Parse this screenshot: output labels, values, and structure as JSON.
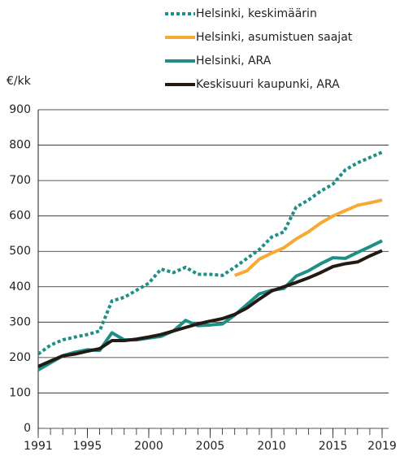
{
  "chart_data": {
    "type": "line",
    "y_label": "€/kk",
    "x": [
      1991,
      1992,
      1993,
      1994,
      1995,
      1996,
      1997,
      1998,
      1999,
      2000,
      2001,
      2002,
      2003,
      2004,
      2005,
      2006,
      2007,
      2008,
      2009,
      2010,
      2011,
      2012,
      2013,
      2014,
      2015,
      2016,
      2017,
      2018,
      2019
    ],
    "xlim": [
      1991,
      2019
    ],
    "xticks": [
      1991,
      1995,
      2000,
      2005,
      2010,
      2015,
      2019
    ],
    "ylim": [
      0,
      900
    ],
    "yticks": [
      0,
      100,
      200,
      300,
      400,
      500,
      600,
      700,
      800,
      900
    ],
    "grid": true,
    "series": [
      {
        "name": "Helsinki, keskimäärin",
        "color": "#1e8f86",
        "dashed": true,
        "values": [
          210,
          235,
          250,
          258,
          265,
          275,
          360,
          370,
          390,
          410,
          450,
          440,
          455,
          435,
          435,
          432,
          455,
          480,
          505,
          540,
          555,
          625,
          645,
          670,
          690,
          730,
          750,
          765,
          780
        ]
      },
      {
        "name": "Helsinki, asumistuen saajat",
        "color": "#f7a934",
        "dashed": false,
        "values": [
          null,
          null,
          null,
          null,
          null,
          null,
          null,
          null,
          null,
          null,
          null,
          null,
          null,
          null,
          null,
          null,
          432,
          445,
          478,
          495,
          510,
          535,
          555,
          580,
          600,
          615,
          630,
          637,
          645
        ]
      },
      {
        "name": "Helsinki, ARA",
        "color": "#1e8f86",
        "dashed": false,
        "values": [
          165,
          185,
          205,
          215,
          222,
          220,
          270,
          250,
          250,
          255,
          260,
          275,
          305,
          290,
          292,
          295,
          320,
          350,
          380,
          390,
          395,
          430,
          445,
          465,
          482,
          480,
          497,
          513,
          530
        ]
      },
      {
        "name": "Keskisuuri kaupunki, ARA",
        "color": "#231a14",
        "dashed": false,
        "values": [
          175,
          190,
          205,
          210,
          218,
          225,
          248,
          248,
          252,
          258,
          265,
          275,
          285,
          295,
          303,
          310,
          322,
          340,
          365,
          388,
          400,
          412,
          425,
          440,
          457,
          465,
          470,
          487,
          502
        ]
      }
    ]
  }
}
